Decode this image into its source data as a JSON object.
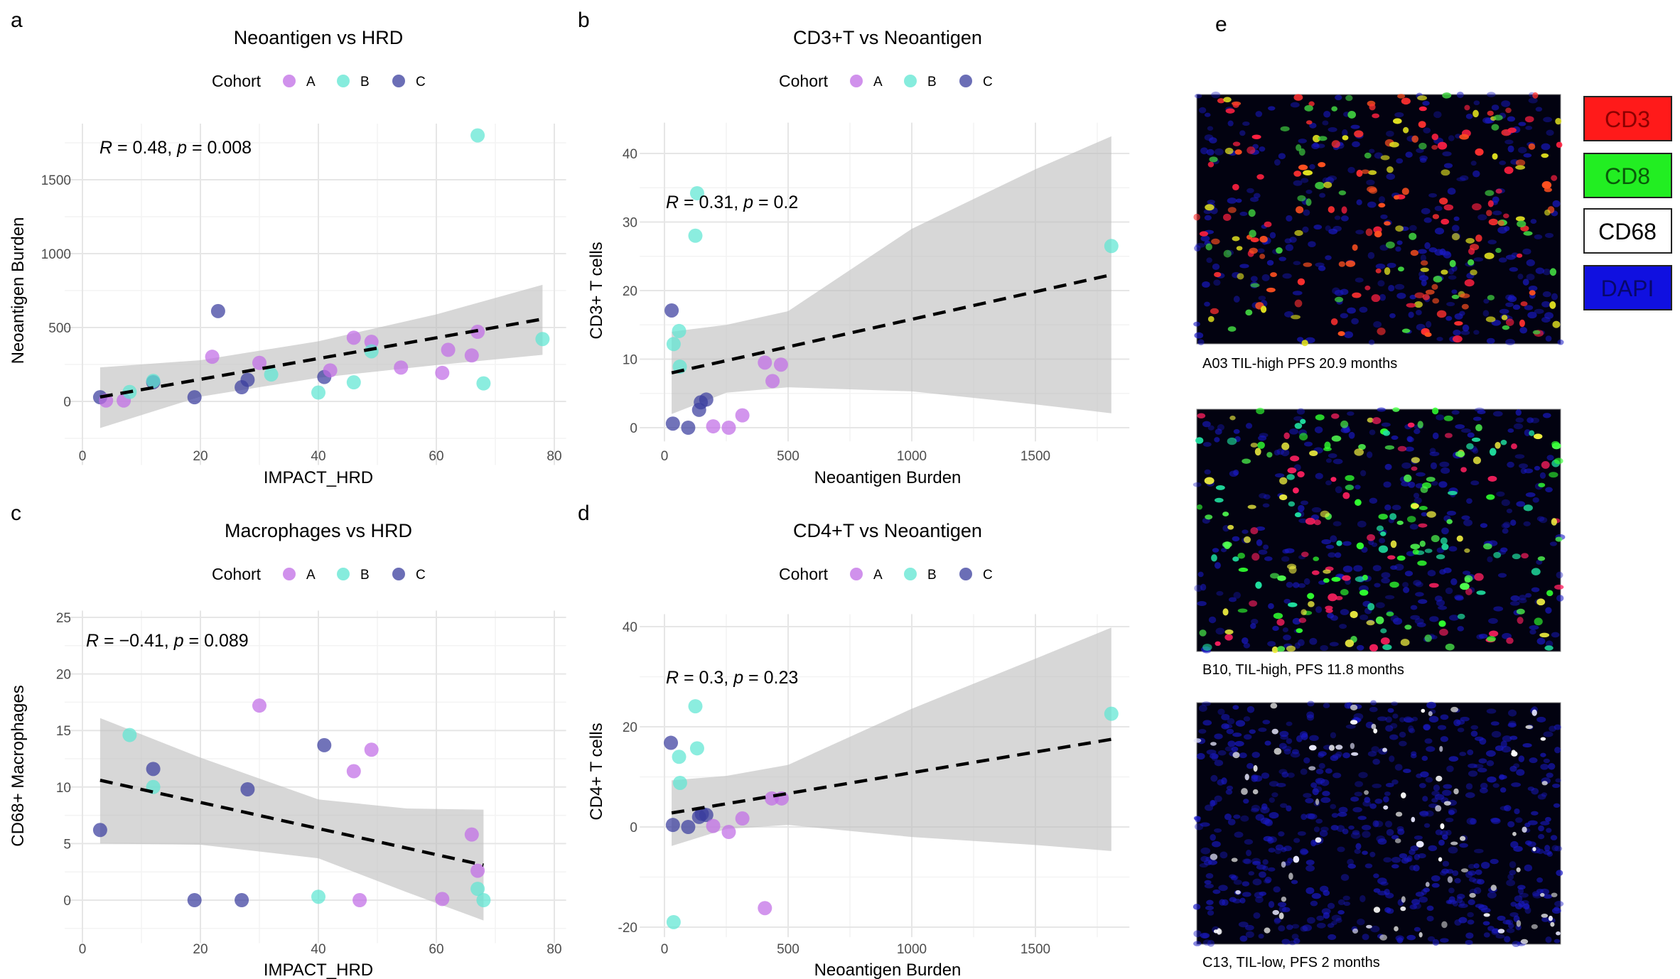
{
  "colors": {
    "A": "#c06ce6",
    "B": "#5ee6d2",
    "C": "#3a3d9e",
    "trend": "#000000",
    "band": "#bdbdbd"
  },
  "chart_data": [
    {
      "id": "a",
      "panel_letter": "a",
      "type": "scatter",
      "title": "Neoantigen vs HRD",
      "xlabel": "IMPACT_HRD",
      "ylabel": "Neoantigen Burden",
      "xlim": [
        -3,
        82
      ],
      "ylim": [
        -430,
        1880
      ],
      "xticks": [
        0,
        20,
        40,
        60,
        80
      ],
      "yticks": [
        0,
        500,
        1000,
        1500
      ],
      "grid": true,
      "legend_placement": "top",
      "legend": {
        "title": "Cohort",
        "entries": [
          "A",
          "B",
          "C"
        ]
      },
      "annotation": {
        "r_sym": "R",
        "r_text": " = 0.48, ",
        "p_sym": "p",
        "p_text": " = 0.008"
      },
      "points": [
        {
          "cohort": "C",
          "x": 3,
          "y": 28
        },
        {
          "cohort": "A",
          "x": 4,
          "y": 6
        },
        {
          "cohort": "A",
          "x": 7,
          "y": 6
        },
        {
          "cohort": "B",
          "x": 8,
          "y": 64
        },
        {
          "cohort": "C",
          "x": 12,
          "y": 130
        },
        {
          "cohort": "B",
          "x": 12,
          "y": 139
        },
        {
          "cohort": "C",
          "x": 19,
          "y": 28
        },
        {
          "cohort": "A",
          "x": 22,
          "y": 302
        },
        {
          "cohort": "C",
          "x": 23,
          "y": 611
        },
        {
          "cohort": "C",
          "x": 27,
          "y": 96
        },
        {
          "cohort": "C",
          "x": 28,
          "y": 146
        },
        {
          "cohort": "A",
          "x": 30,
          "y": 261
        },
        {
          "cohort": "B",
          "x": 32,
          "y": 182
        },
        {
          "cohort": "B",
          "x": 40,
          "y": 60
        },
        {
          "cohort": "C",
          "x": 41,
          "y": 165
        },
        {
          "cohort": "A",
          "x": 42,
          "y": 210
        },
        {
          "cohort": "A",
          "x": 46,
          "y": 431
        },
        {
          "cohort": "B",
          "x": 46,
          "y": 129
        },
        {
          "cohort": "A",
          "x": 49,
          "y": 403
        },
        {
          "cohort": "B",
          "x": 49,
          "y": 339
        },
        {
          "cohort": "A",
          "x": 54,
          "y": 229
        },
        {
          "cohort": "A",
          "x": 61,
          "y": 193
        },
        {
          "cohort": "A",
          "x": 62,
          "y": 349
        },
        {
          "cohort": "A",
          "x": 66,
          "y": 311
        },
        {
          "cohort": "A",
          "x": 67,
          "y": 471
        },
        {
          "cohort": "B",
          "x": 67,
          "y": 1800
        },
        {
          "cohort": "B",
          "x": 68,
          "y": 122
        },
        {
          "cohort": "B",
          "x": 78,
          "y": 422
        }
      ],
      "trend": {
        "x": [
          3,
          78
        ],
        "y": [
          30,
          557
        ]
      },
      "band": {
        "x": [
          3,
          20,
          40,
          60,
          78
        ],
        "lower": [
          -180,
          32,
          160,
          246,
          315
        ],
        "upper": [
          230,
          279,
          407,
          589,
          789
        ]
      }
    },
    {
      "id": "b",
      "panel_letter": "b",
      "type": "scatter",
      "title": "CD3+T vs Neoantigen",
      "xlabel": "Neoantigen Burden",
      "ylabel": "CD3+ T cells",
      "xlim": [
        -100,
        1880
      ],
      "ylim": [
        -2,
        44.5
      ],
      "xticks": [
        0,
        500,
        1000,
        1500
      ],
      "yticks": [
        0,
        10,
        20,
        30,
        40
      ],
      "grid": true,
      "legend_placement": "top",
      "legend": {
        "title": "Cohort",
        "entries": [
          "A",
          "B",
          "C"
        ]
      },
      "annotation": {
        "r_sym": "R",
        "r_text": " = 0.31, ",
        "p_sym": "p",
        "p_text": " = 0.2"
      },
      "points": [
        {
          "cohort": "C",
          "x": 29,
          "y": 17.1
        },
        {
          "cohort": "B",
          "x": 59,
          "y": 14.1
        },
        {
          "cohort": "B",
          "x": 37,
          "y": 12.2
        },
        {
          "cohort": "B",
          "x": 62,
          "y": 8.9
        },
        {
          "cohort": "B",
          "x": 132,
          "y": 34.2
        },
        {
          "cohort": "B",
          "x": 125,
          "y": 28
        },
        {
          "cohort": "C",
          "x": 34,
          "y": 0.6
        },
        {
          "cohort": "C",
          "x": 96,
          "y": 0
        },
        {
          "cohort": "C",
          "x": 140,
          "y": 2.6
        },
        {
          "cohort": "C",
          "x": 147,
          "y": 3.7
        },
        {
          "cohort": "C",
          "x": 169,
          "y": 4.1
        },
        {
          "cohort": "A",
          "x": 197,
          "y": 0.2
        },
        {
          "cohort": "A",
          "x": 260,
          "y": 0
        },
        {
          "cohort": "A",
          "x": 315,
          "y": 1.8
        },
        {
          "cohort": "A",
          "x": 406,
          "y": 9.5
        },
        {
          "cohort": "A",
          "x": 437,
          "y": 6.8
        },
        {
          "cohort": "A",
          "x": 471,
          "y": 9.2
        },
        {
          "cohort": "B",
          "x": 1807,
          "y": 26.5
        }
      ],
      "trend": {
        "x": [
          29,
          1807
        ],
        "y": [
          8,
          22.3
        ]
      },
      "band": {
        "x": [
          29,
          250,
          500,
          1000,
          1500,
          1807
        ],
        "lower": [
          2,
          5.1,
          5.9,
          5.3,
          3.4,
          2.1
        ],
        "upper": [
          14,
          15,
          17,
          29,
          37.7,
          42.5
        ]
      }
    },
    {
      "id": "c",
      "panel_letter": "c",
      "type": "scatter",
      "title": "Macrophages vs HRD",
      "xlabel": "IMPACT_HRD",
      "ylabel": "CD68+ Macrophages",
      "xlim": [
        -3,
        82
      ],
      "ylim": [
        -3.8,
        25.6
      ],
      "xticks": [
        0,
        20,
        40,
        60,
        80
      ],
      "yticks": [
        0,
        5,
        10,
        15,
        20,
        25
      ],
      "grid": true,
      "legend_placement": "top",
      "legend": {
        "title": "Cohort",
        "entries": [
          "A",
          "B",
          "C"
        ]
      },
      "annotation": {
        "r_sym": "R",
        "r_text": " = −0.41, ",
        "p_sym": "p",
        "p_text": " = 0.089"
      },
      "points": [
        {
          "cohort": "C",
          "x": 3,
          "y": 6.2
        },
        {
          "cohort": "B",
          "x": 8,
          "y": 14.6
        },
        {
          "cohort": "C",
          "x": 12,
          "y": 11.6
        },
        {
          "cohort": "B",
          "x": 12,
          "y": 10
        },
        {
          "cohort": "C",
          "x": 19,
          "y": 0
        },
        {
          "cohort": "C",
          "x": 27,
          "y": 0
        },
        {
          "cohort": "C",
          "x": 28,
          "y": 9.8
        },
        {
          "cohort": "A",
          "x": 30,
          "y": 17.2
        },
        {
          "cohort": "B",
          "x": 40,
          "y": 0.3
        },
        {
          "cohort": "C",
          "x": 41,
          "y": 13.7
        },
        {
          "cohort": "A",
          "x": 46,
          "y": 11.4
        },
        {
          "cohort": "A",
          "x": 47,
          "y": 0
        },
        {
          "cohort": "A",
          "x": 49,
          "y": 13.3
        },
        {
          "cohort": "A",
          "x": 61,
          "y": 0.1
        },
        {
          "cohort": "A",
          "x": 66,
          "y": 5.8
        },
        {
          "cohort": "A",
          "x": 67,
          "y": 2.6
        },
        {
          "cohort": "B",
          "x": 67,
          "y": 1.0
        },
        {
          "cohort": "B",
          "x": 68,
          "y": 0
        }
      ],
      "trend": {
        "x": [
          3,
          68
        ],
        "y": [
          10.6,
          3.1
        ]
      },
      "band": {
        "x": [
          3,
          20,
          40,
          55,
          68
        ],
        "lower": [
          5,
          4.9,
          3.7,
          0.7,
          -1.8
        ],
        "upper": [
          16.1,
          12.6,
          8.9,
          8.1,
          8
        ]
      }
    },
    {
      "id": "d",
      "panel_letter": "d",
      "type": "scatter",
      "title": "CD4+T vs Neoantigen",
      "xlabel": "Neoantigen Burden",
      "ylabel": "CD4+ T cells",
      "xlim": [
        -100,
        1880
      ],
      "ylim": [
        -22,
        42.5
      ],
      "xticks": [
        0,
        500,
        1000,
        1500
      ],
      "yticks": [
        -20,
        0,
        20,
        40
      ],
      "grid": true,
      "legend_placement": "top",
      "legend": {
        "title": "Cohort",
        "entries": [
          "A",
          "B",
          "C"
        ]
      },
      "annotation": {
        "r_sym": "R",
        "r_text": " = 0.3, ",
        "p_sym": "p",
        "p_text": " = 0.23"
      },
      "points": [
        {
          "cohort": "C",
          "x": 26,
          "y": 16.8
        },
        {
          "cohort": "B",
          "x": 59,
          "y": 14
        },
        {
          "cohort": "B",
          "x": 63,
          "y": 8.8
        },
        {
          "cohort": "B",
          "x": 125,
          "y": 24.1
        },
        {
          "cohort": "B",
          "x": 132,
          "y": 15.7
        },
        {
          "cohort": "C",
          "x": 34,
          "y": 0.4
        },
        {
          "cohort": "C",
          "x": 96,
          "y": 0
        },
        {
          "cohort": "C",
          "x": 140,
          "y": 2
        },
        {
          "cohort": "C",
          "x": 151,
          "y": 2.6
        },
        {
          "cohort": "C",
          "x": 169,
          "y": 2.4
        },
        {
          "cohort": "A",
          "x": 197,
          "y": 0.2
        },
        {
          "cohort": "A",
          "x": 260,
          "y": -1
        },
        {
          "cohort": "A",
          "x": 315,
          "y": 1.7
        },
        {
          "cohort": "A",
          "x": 406,
          "y": -16.2
        },
        {
          "cohort": "A",
          "x": 434,
          "y": 5.7
        },
        {
          "cohort": "A",
          "x": 474,
          "y": 5.7
        },
        {
          "cohort": "B",
          "x": 37,
          "y": -19
        },
        {
          "cohort": "B",
          "x": 1807,
          "y": 22.6
        }
      ],
      "trend": {
        "x": [
          29,
          1807
        ],
        "y": [
          2.8,
          17.5
        ]
      },
      "band": {
        "x": [
          29,
          250,
          500,
          1000,
          1500,
          1807
        ],
        "lower": [
          -3.8,
          -0.4,
          0.4,
          -2,
          -3.6,
          -4.8
        ],
        "upper": [
          9.3,
          10.2,
          12.4,
          23.6,
          33.6,
          39.8
        ]
      }
    }
  ],
  "panel_e": {
    "panel_letter": "e",
    "channels": [
      {
        "label": "CD3",
        "fill": "#ff1a1a",
        "text_color": "#8b0000"
      },
      {
        "label": "CD8",
        "fill": "#22ee22",
        "text_color": "#0a5a0a"
      },
      {
        "label": "CD68",
        "fill": "#ffffff",
        "text_color": "#000000"
      },
      {
        "label": "DAPI",
        "fill": "#1010e0",
        "text_color": "#08086a"
      }
    ],
    "images": [
      {
        "caption": "A03 TIL-high PFS 20.9 months",
        "dominant_stain": "CD3"
      },
      {
        "caption": "B10, TIL-high, PFS 11.8 months",
        "dominant_stain": "CD8"
      },
      {
        "caption": "C13, TIL-low, PFS 2 months",
        "dominant_stain": "CD68"
      }
    ]
  }
}
